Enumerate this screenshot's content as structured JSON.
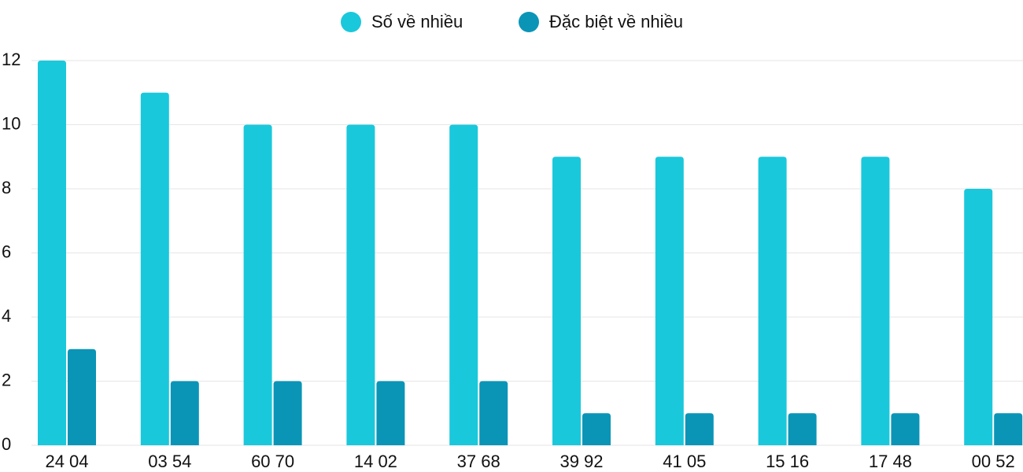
{
  "chart_data": {
    "type": "bar",
    "categories": [
      "24 04",
      "03 54",
      "60 70",
      "14 02",
      "37 68",
      "39 92",
      "41 05",
      "15 16",
      "17 48",
      "00 52"
    ],
    "series": [
      {
        "name": "Số về nhiều",
        "color": "#1ac8db",
        "values": [
          12,
          11,
          10,
          10,
          10,
          9,
          9,
          9,
          9,
          8
        ]
      },
      {
        "name": "Đặc biệt về nhiều",
        "color": "#0a95b7",
        "values": [
          3,
          2,
          2,
          2,
          2,
          1,
          1,
          1,
          1,
          1
        ]
      }
    ],
    "ylim": [
      0,
      12
    ],
    "yticks": [
      0,
      2,
      4,
      6,
      8,
      10,
      12
    ],
    "grid": true,
    "legend": "top"
  }
}
